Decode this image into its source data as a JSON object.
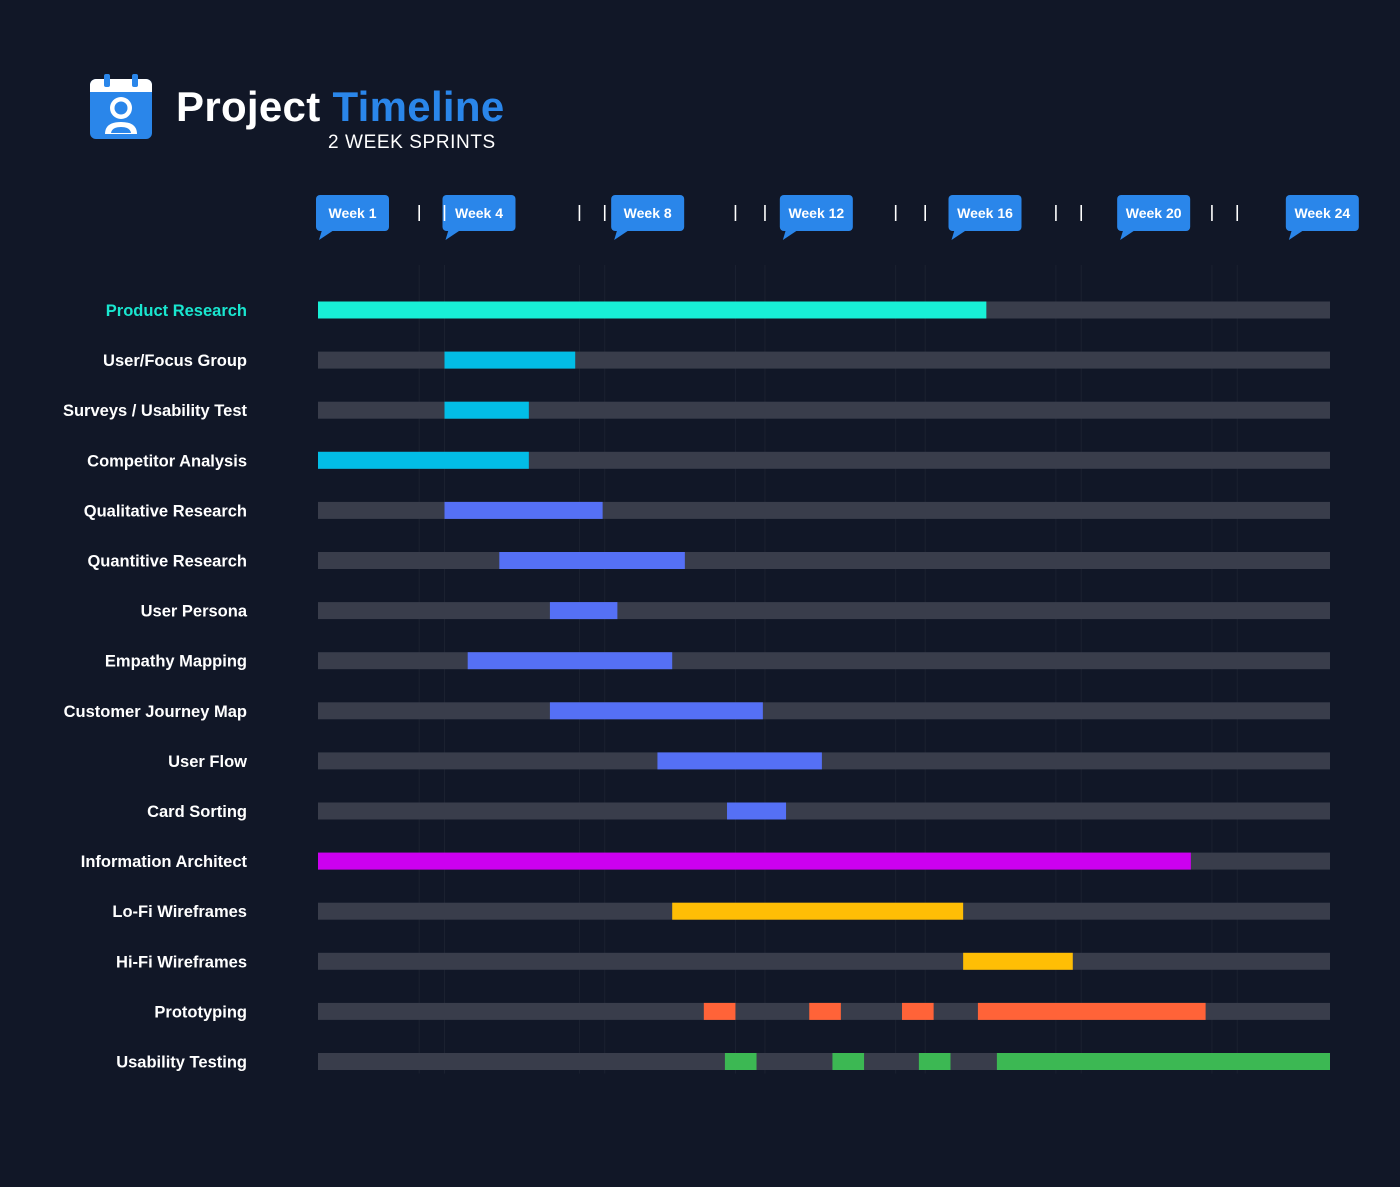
{
  "header": {
    "title_main": "Project",
    "title_accent": "Timeline",
    "subtitle": "2 WEEK SPRINTS",
    "logo_icon": "calendar-user-icon"
  },
  "colors": {
    "background": "#111727",
    "track": "#393d4b",
    "accent_blue": "#2a86ea",
    "grid": "#1b2130"
  },
  "chart_data": {
    "type": "gantt",
    "title": "Project Timeline",
    "subtitle": "2 WEEK SPRINTS",
    "x_unit": "week",
    "xlim": [
      0,
      24
    ],
    "week_markers": [
      {
        "week": 0,
        "label": "Week 1"
      },
      {
        "week": 3,
        "label": "Week 4"
      },
      {
        "week": 7,
        "label": "Week 8"
      },
      {
        "week": 11,
        "label": "Week 12"
      },
      {
        "week": 15,
        "label": "Week 16"
      },
      {
        "week": 19,
        "label": "Week 20"
      },
      {
        "week": 23,
        "label": "Week 24"
      }
    ],
    "tick_weeks": [
      2.4,
      3,
      6.2,
      6.8,
      9.9,
      10.6,
      13.7,
      14.4,
      17.5,
      18.1,
      21.2,
      21.8
    ],
    "tasks": [
      {
        "name": "Product Research",
        "color": "#18f0d6",
        "highlight": true,
        "segments": [
          [
            0,
            15.85
          ]
        ]
      },
      {
        "name": "User/Focus Group",
        "color": "#02bde6",
        "segments": [
          [
            3,
            6.1
          ]
        ]
      },
      {
        "name": "Surveys / Usability Test",
        "color": "#02bde6",
        "segments": [
          [
            3,
            5
          ]
        ]
      },
      {
        "name": "Competitor Analysis",
        "color": "#02bde6",
        "segments": [
          [
            0,
            5
          ]
        ]
      },
      {
        "name": "Qualitative Research",
        "color": "#5570f5",
        "segments": [
          [
            3,
            6.75
          ]
        ]
      },
      {
        "name": "Quantitive Research",
        "color": "#5570f5",
        "segments": [
          [
            4.3,
            8.7
          ]
        ]
      },
      {
        "name": "User Persona",
        "color": "#5570f5",
        "segments": [
          [
            5.5,
            7.1
          ]
        ]
      },
      {
        "name": "Empathy Mapping",
        "color": "#5570f5",
        "segments": [
          [
            3.55,
            8.4
          ]
        ]
      },
      {
        "name": "Customer Journey Map",
        "color": "#5570f5",
        "segments": [
          [
            5.5,
            10.55
          ]
        ]
      },
      {
        "name": "User Flow",
        "color": "#5570f5",
        "segments": [
          [
            8.05,
            11.95
          ]
        ]
      },
      {
        "name": "Card Sorting",
        "color": "#5570f5",
        "segments": [
          [
            9.7,
            11.1
          ]
        ]
      },
      {
        "name": "Information Architect",
        "color": "#cc00f0",
        "segments": [
          [
            0,
            20.7
          ]
        ]
      },
      {
        "name": "Lo-Fi Wireframes",
        "color": "#ffbe05",
        "segments": [
          [
            8.4,
            15.3
          ]
        ]
      },
      {
        "name": "Hi-Fi Wireframes",
        "color": "#ffbe05",
        "segments": [
          [
            15.3,
            17.9
          ]
        ]
      },
      {
        "name": "Prototyping",
        "color": "#ff6338",
        "segments": [
          [
            9.15,
            9.9
          ],
          [
            11.65,
            12.4
          ],
          [
            13.85,
            14.6
          ],
          [
            15.65,
            21.05
          ]
        ]
      },
      {
        "name": "Usability Testing",
        "color": "#3cb853",
        "segments": [
          [
            9.65,
            10.4
          ],
          [
            12.2,
            12.95
          ],
          [
            14.25,
            15
          ],
          [
            16.1,
            24
          ]
        ]
      }
    ]
  }
}
